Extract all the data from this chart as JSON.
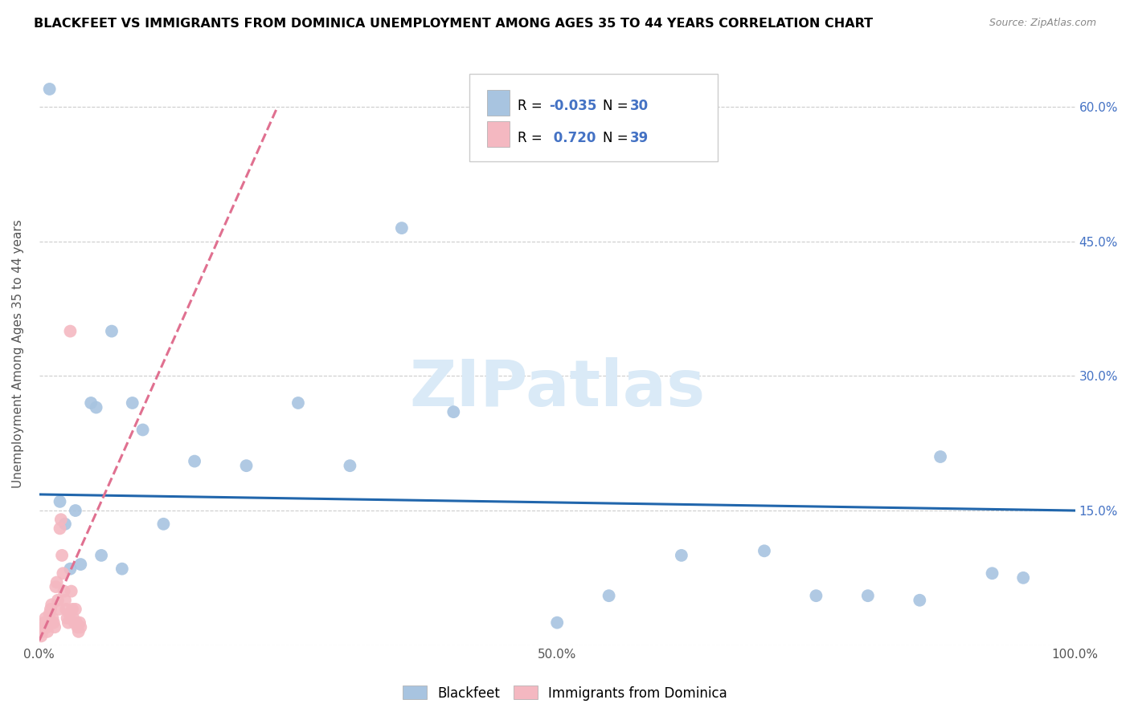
{
  "title": "BLACKFEET VS IMMIGRANTS FROM DOMINICA UNEMPLOYMENT AMONG AGES 35 TO 44 YEARS CORRELATION CHART",
  "source": "Source: ZipAtlas.com",
  "ylabel": "Unemployment Among Ages 35 to 44 years",
  "xlim": [
    0,
    1.0
  ],
  "ylim": [
    0,
    0.65
  ],
  "blue_color": "#a8c4e0",
  "pink_color": "#f4b8c1",
  "blue_line_color": "#2166ac",
  "pink_line_color": "#e07090",
  "watermark_color": "#daeaf7",
  "blue_scatter_x": [
    0.01,
    0.02,
    0.025,
    0.03,
    0.035,
    0.04,
    0.05,
    0.055,
    0.06,
    0.07,
    0.08,
    0.09,
    0.1,
    0.12,
    0.15,
    0.2,
    0.25,
    0.3,
    0.35,
    0.4,
    0.5,
    0.55,
    0.62,
    0.7,
    0.75,
    0.8,
    0.85,
    0.87,
    0.92,
    0.95
  ],
  "blue_scatter_y": [
    0.62,
    0.16,
    0.135,
    0.085,
    0.15,
    0.09,
    0.27,
    0.265,
    0.1,
    0.35,
    0.085,
    0.27,
    0.24,
    0.135,
    0.205,
    0.2,
    0.27,
    0.2,
    0.465,
    0.26,
    0.025,
    0.055,
    0.1,
    0.105,
    0.055,
    0.055,
    0.05,
    0.21,
    0.08,
    0.075
  ],
  "pink_scatter_x": [
    0.002,
    0.003,
    0.004,
    0.005,
    0.006,
    0.007,
    0.008,
    0.009,
    0.01,
    0.011,
    0.012,
    0.013,
    0.014,
    0.015,
    0.016,
    0.017,
    0.018,
    0.019,
    0.02,
    0.021,
    0.022,
    0.023,
    0.024,
    0.025,
    0.026,
    0.027,
    0.028,
    0.029,
    0.03,
    0.031,
    0.032,
    0.033,
    0.034,
    0.035,
    0.036,
    0.037,
    0.038,
    0.039,
    0.04
  ],
  "pink_scatter_y": [
    0.01,
    0.015,
    0.02,
    0.025,
    0.03,
    0.02,
    0.015,
    0.025,
    0.035,
    0.04,
    0.045,
    0.03,
    0.025,
    0.02,
    0.065,
    0.07,
    0.05,
    0.04,
    0.13,
    0.14,
    0.1,
    0.08,
    0.06,
    0.05,
    0.04,
    0.03,
    0.025,
    0.035,
    0.35,
    0.06,
    0.04,
    0.03,
    0.025,
    0.04,
    0.025,
    0.02,
    0.015,
    0.025,
    0.02
  ],
  "blue_line_x": [
    0.0,
    1.0
  ],
  "blue_line_y": [
    0.168,
    0.15
  ],
  "pink_line_x": [
    0.0,
    0.23
  ],
  "pink_line_y": [
    0.005,
    0.6
  ],
  "legend_items": [
    {
      "label": "R = -0.035   N = 30",
      "color": "#a8c4e0"
    },
    {
      "label": "R =  0.720   N = 39",
      "color": "#f4b8c1"
    }
  ]
}
